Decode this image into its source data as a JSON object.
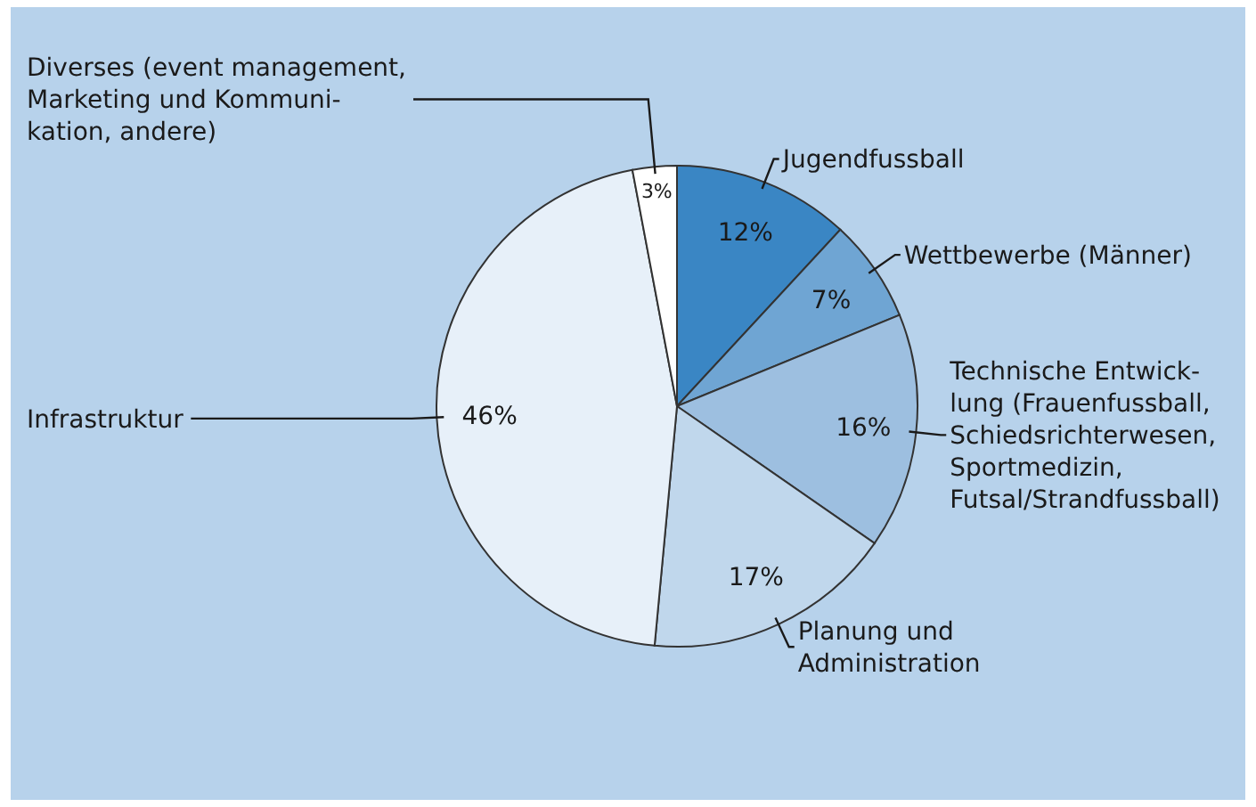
{
  "chart_data": {
    "type": "pie",
    "categories": [
      "Jugendfussball",
      "Wettbewerbe (Männer)",
      "Technische Entwick-\nlung (Frauenfussball,\nSchiedsrichterwesen,\nSportmedizin,\nFutsal/Strandfussball)",
      "Planung und\nAdministration",
      "Infrastruktur",
      "Diverses (event management,\nMarketing und Kommuni-\nkation, andere)"
    ],
    "values": [
      12,
      7,
      16,
      17,
      46,
      3
    ],
    "value_labels": [
      "12%",
      "7%",
      "16%",
      "17%",
      "46%",
      "3%"
    ],
    "colors": [
      "#3a86c4",
      "#6fa5d3",
      "#9dbfe0",
      "#c0d7ec",
      "#e7f0f9",
      "#ffffff"
    ]
  }
}
